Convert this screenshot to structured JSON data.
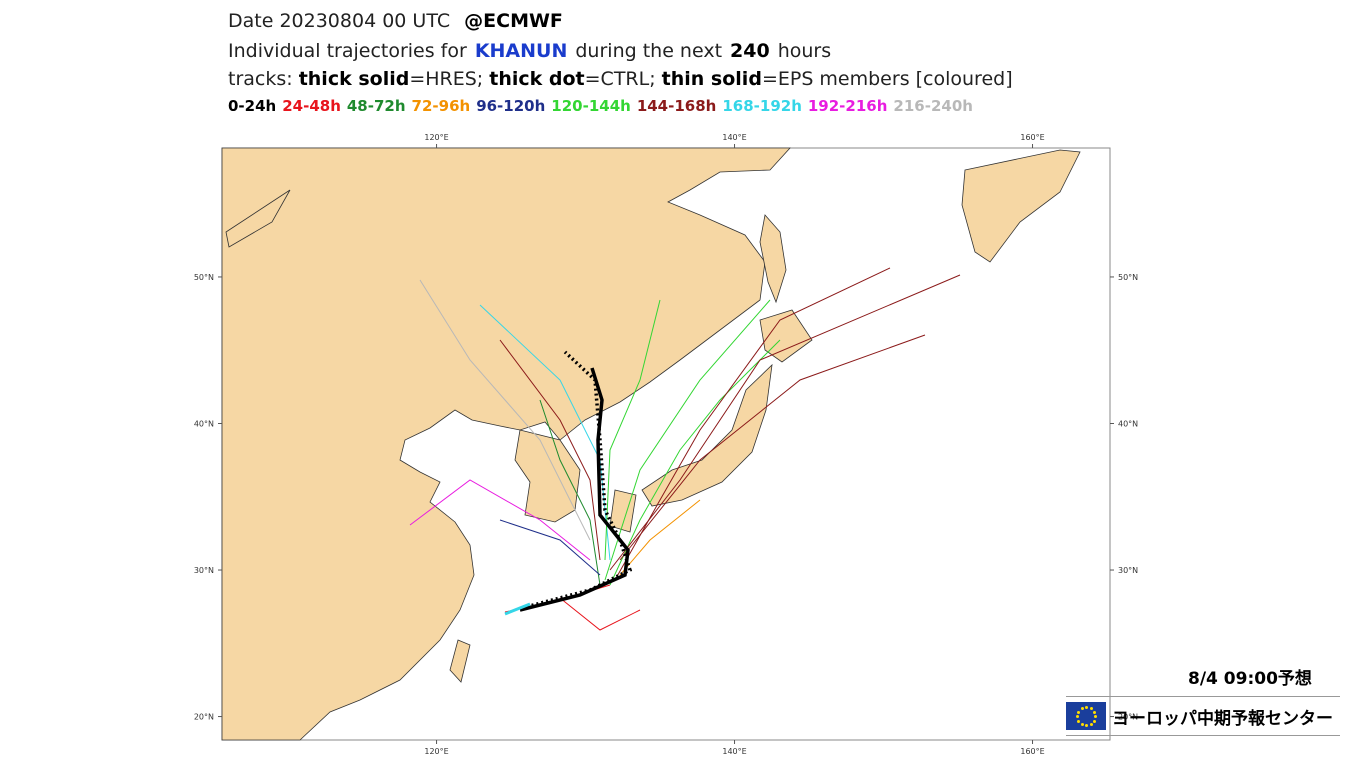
{
  "header": {
    "date": "Date 20230804 00 UTC",
    "source": "@ECMWF",
    "line2": [
      "Individual trajectories for",
      "KHANUN",
      "during the next",
      "240",
      "hours"
    ],
    "line3": [
      "tracks:",
      "thick solid",
      "=HRES;",
      "thick dot",
      "=CTRL;",
      "thin solid",
      "=EPS members [coloured]"
    ]
  },
  "legend": [
    {
      "label": "0-24h",
      "color": "#000000"
    },
    {
      "label": "24-48h",
      "color": "#e8141c"
    },
    {
      "label": "48-72h",
      "color": "#1f8a2e"
    },
    {
      "label": "72-96h",
      "color": "#f39200"
    },
    {
      "label": "96-120h",
      "color": "#1f2f8a"
    },
    {
      "label": "120-144h",
      "color": "#33d633"
    },
    {
      "label": "144-168h",
      "color": "#8b1a1a"
    },
    {
      "label": "168-192h",
      "color": "#35d6e8"
    },
    {
      "label": "192-216h",
      "color": "#e81ce0"
    },
    {
      "label": "216-240h",
      "color": "#b8b8b8"
    }
  ],
  "map": {
    "lon_range": [
      105.6,
      165.2
    ],
    "lat_range": [
      18.4,
      58.8
    ],
    "lon_ticks": [
      {
        "value": 120,
        "label": "120°E"
      },
      {
        "value": 140,
        "label": "140°E"
      },
      {
        "value": 160,
        "label": "160°E"
      }
    ],
    "lat_ticks": [
      {
        "value": 50,
        "label": "50°N"
      },
      {
        "value": 40,
        "label": "40°N"
      },
      {
        "value": 30,
        "label": "30°N"
      },
      {
        "value": 20,
        "label": "20°N"
      }
    ]
  },
  "caption": "8/4  09:00予想",
  "logo": "ヨーロッパ中期予報センター"
}
